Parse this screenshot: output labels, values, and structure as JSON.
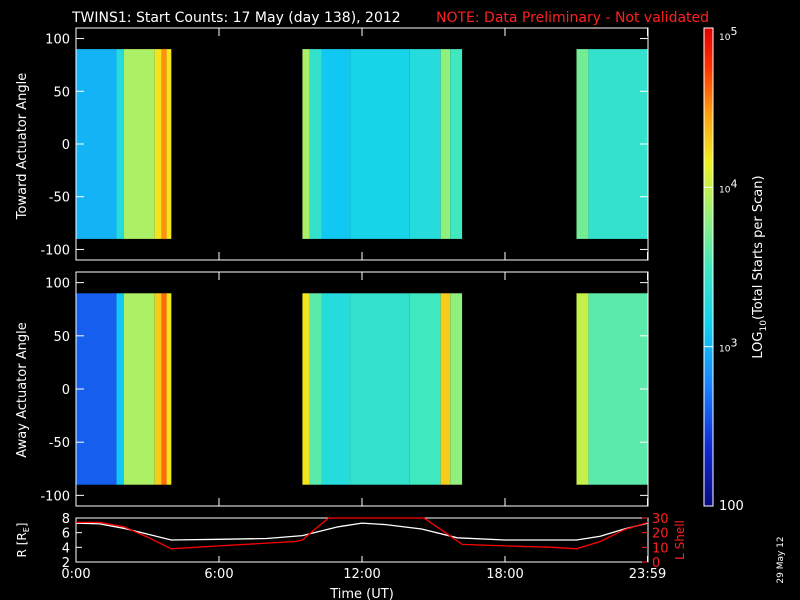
{
  "header": {
    "title": "TWINS1: Start Counts: 17 May (day 138), 2012",
    "note": "NOTE: Data Preliminary - Not validated"
  },
  "footer": {
    "date_stamp": "29 May 12"
  },
  "colors": {
    "background": "#000000",
    "note_text": "#ff2020",
    "text": "#ffffff",
    "colormap": [
      "#0a0a80",
      "#1028d0",
      "#1a80ff",
      "#10d0f0",
      "#40e8c0",
      "#a0f070",
      "#f0f020",
      "#ffa010",
      "#ff3000",
      "#e00000"
    ]
  },
  "chart_data": [
    {
      "type": "heatmap",
      "ylabel": "Toward Actuator Angle",
      "ylim": [
        -110,
        110
      ],
      "yticks": [
        100,
        50,
        0,
        -50,
        -100
      ],
      "x_unit": "hours UT",
      "xlim": [
        0,
        24
      ],
      "angle_range": [
        -90,
        90
      ],
      "blocks": [
        {
          "start": 0.0,
          "end": 4.0,
          "columns": [
            {
              "start": 0.0,
              "end": 1.7,
              "log_counts": 3.0
            },
            {
              "start": 1.7,
              "end": 2.0,
              "log_counts": 3.3
            },
            {
              "start": 2.0,
              "end": 3.3,
              "log_counts": 3.9
            },
            {
              "start": 3.3,
              "end": 3.6,
              "log_counts": 4.2
            },
            {
              "start": 3.6,
              "end": 3.8,
              "log_counts": 4.5
            },
            {
              "start": 3.8,
              "end": 4.0,
              "log_counts": 4.2
            }
          ]
        },
        {
          "start": 9.5,
          "end": 16.2,
          "columns": [
            {
              "start": 9.5,
              "end": 9.8,
              "log_counts": 3.9
            },
            {
              "start": 9.8,
              "end": 10.3,
              "log_counts": 3.4
            },
            {
              "start": 10.3,
              "end": 11.5,
              "log_counts": 3.1
            },
            {
              "start": 11.5,
              "end": 14.0,
              "log_counts": 3.2
            },
            {
              "start": 14.0,
              "end": 15.3,
              "log_counts": 3.3
            },
            {
              "start": 15.3,
              "end": 15.7,
              "log_counts": 3.8
            },
            {
              "start": 15.7,
              "end": 16.2,
              "log_counts": 3.5
            }
          ]
        },
        {
          "start": 21.0,
          "end": 24.0,
          "columns": [
            {
              "start": 21.0,
              "end": 21.5,
              "log_counts": 3.7
            },
            {
              "start": 21.5,
              "end": 24.0,
              "log_counts": 3.4
            }
          ]
        }
      ]
    },
    {
      "type": "heatmap",
      "ylabel": "Away Actuator Angle",
      "ylim": [
        -110,
        110
      ],
      "yticks": [
        100,
        50,
        0,
        -50,
        -100
      ],
      "x_unit": "hours UT",
      "xlim": [
        0,
        24
      ],
      "angle_range": [
        -90,
        90
      ],
      "blocks": [
        {
          "start": 0.0,
          "end": 4.0,
          "columns": [
            {
              "start": 0.0,
              "end": 1.7,
              "log_counts": 2.6
            },
            {
              "start": 1.7,
              "end": 2.0,
              "log_counts": 3.1
            },
            {
              "start": 2.0,
              "end": 3.3,
              "log_counts": 3.9
            },
            {
              "start": 3.3,
              "end": 3.6,
              "log_counts": 4.3
            },
            {
              "start": 3.6,
              "end": 3.8,
              "log_counts": 4.6
            },
            {
              "start": 3.8,
              "end": 4.0,
              "log_counts": 4.2
            }
          ]
        },
        {
          "start": 9.5,
          "end": 16.2,
          "columns": [
            {
              "start": 9.5,
              "end": 9.8,
              "log_counts": 4.2
            },
            {
              "start": 9.8,
              "end": 10.3,
              "log_counts": 3.6
            },
            {
              "start": 10.3,
              "end": 11.5,
              "log_counts": 3.3
            },
            {
              "start": 11.5,
              "end": 14.0,
              "log_counts": 3.4
            },
            {
              "start": 14.0,
              "end": 15.3,
              "log_counts": 3.5
            },
            {
              "start": 15.3,
              "end": 15.7,
              "log_counts": 4.3
            },
            {
              "start": 15.7,
              "end": 16.2,
              "log_counts": 3.8
            }
          ]
        },
        {
          "start": 21.0,
          "end": 24.0,
          "columns": [
            {
              "start": 21.0,
              "end": 21.5,
              "log_counts": 4.0
            },
            {
              "start": 21.5,
              "end": 24.0,
              "log_counts": 3.6
            }
          ]
        }
      ]
    },
    {
      "type": "line",
      "xlabel": "Time (UT)",
      "xlim": [
        0,
        24
      ],
      "xtick_labels": [
        "0:00",
        "6:00",
        "12:00",
        "18:00",
        "23:59"
      ],
      "xtick_values": [
        0,
        6,
        12,
        18,
        23.98
      ],
      "ylabel_left": "R [R",
      "ylabel_left_sub": "E",
      "ylabel_left_end": "]",
      "ylim_left": [
        2,
        8
      ],
      "yticks_left": [
        8,
        6,
        4,
        2
      ],
      "ylabel_right": "L Shell",
      "ylim_right": [
        0,
        30
      ],
      "yticks_right": [
        30,
        20,
        10,
        0
      ],
      "series": [
        {
          "axis": "left",
          "color": "#ffffff",
          "x": [
            0,
            1,
            2,
            3,
            4,
            6,
            8,
            9.5,
            11,
            12,
            13,
            14.5,
            16,
            18,
            20,
            21,
            22,
            23,
            24
          ],
          "y": [
            7.3,
            7.2,
            6.6,
            5.8,
            5.0,
            5.1,
            5.2,
            5.6,
            6.8,
            7.3,
            7.1,
            6.5,
            5.3,
            5.0,
            5.0,
            5.0,
            5.5,
            6.5,
            7.3
          ]
        },
        {
          "axis": "right",
          "color": "#ff0000",
          "x": [
            0,
            1,
            2,
            3,
            4,
            6,
            9.2,
            9.5,
            10,
            10.6,
            14.6,
            15.5,
            16.2,
            18,
            20,
            21,
            22,
            23,
            24
          ],
          "y": [
            27,
            27,
            24,
            17,
            9,
            11,
            14,
            15,
            22,
            30,
            30,
            20,
            12,
            11,
            10,
            9,
            14,
            22,
            27
          ]
        }
      ]
    }
  ],
  "colorbar": {
    "label_main": "LOG",
    "label_sub": "10",
    "label_rest": "(Total Starts per Scan)",
    "log_range": [
      2,
      5
    ],
    "ticks": [
      {
        "log": 5,
        "base": "10",
        "exp": "5"
      },
      {
        "log": 4,
        "base": "10",
        "exp": "4"
      },
      {
        "log": 3,
        "base": "10",
        "exp": "3"
      },
      {
        "log": 2,
        "base": "100",
        "exp": ""
      }
    ]
  }
}
